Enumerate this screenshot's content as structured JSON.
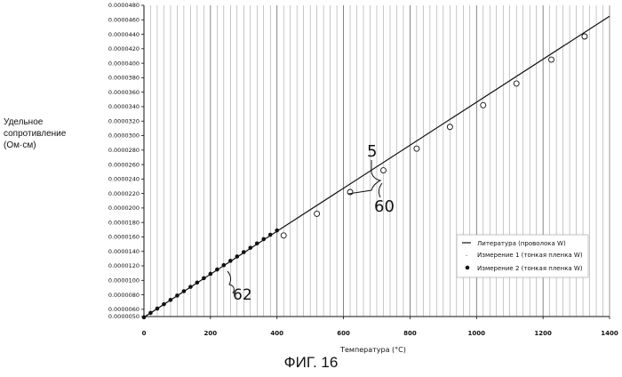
{
  "chart_data": {
    "type": "line",
    "xlabel": "Температура (°C)",
    "ylabel_lines": [
      "Удельное",
      "сопротивление",
      "(Ом·см)"
    ],
    "xlim": [
      0,
      1400
    ],
    "ylim": [
      5e-06,
      4.8e-05
    ],
    "x_ticks": [
      "0",
      "200",
      "400",
      "600",
      "800",
      "1000",
      "1200",
      "1400"
    ],
    "y_ticks": [
      "0.0000050",
      "0.0000060",
      "0.0000080",
      "0.0000100",
      "0.0000120",
      "0.0000140",
      "0.0000160",
      "0.0000180",
      "0.0000200",
      "0.0000220",
      "0.0000240",
      "0.0000260",
      "0.0000280",
      "0.0000300",
      "0.0000320",
      "0.0000340",
      "0.0000360",
      "0.0000380",
      "0.0000400",
      "0.0000420",
      "0.0000440",
      "0.0000460",
      "0.0000480"
    ],
    "grid": "vertical",
    "legend_position": "right",
    "series": [
      {
        "name": "Литература (проволока W)",
        "style": "line",
        "x": [
          0,
          1400
        ],
        "y": [
          4.9e-06,
          4.65e-05
        ]
      },
      {
        "name": "Измерение 1 (тонкая пленка W)",
        "style": "open-circle",
        "x": [
          420,
          520,
          620,
          720,
          820,
          920,
          1020,
          1120,
          1225,
          1325
        ],
        "y": [
          1.62e-05,
          1.92e-05,
          2.22e-05,
          2.52e-05,
          2.82e-05,
          3.12e-05,
          3.42e-05,
          3.72e-05,
          4.05e-05,
          4.37e-05
        ]
      },
      {
        "name": "Измерение 2 (тонкая пленка W)",
        "style": "filled-circle",
        "x": [
          0,
          20,
          40,
          60,
          80,
          100,
          120,
          140,
          160,
          180,
          200,
          220,
          240,
          260,
          280,
          300,
          320,
          340,
          360,
          380,
          400
        ],
        "y": [
          4.9e-06,
          5.5e-06,
          6.1e-06,
          6.7e-06,
          7.3e-06,
          7.9e-06,
          8.5e-06,
          9.1e-06,
          9.7e-06,
          1.03e-05,
          1.09e-05,
          1.15e-05,
          1.21e-05,
          1.27e-05,
          1.33e-05,
          1.39e-05,
          1.45e-05,
          1.51e-05,
          1.57e-05,
          1.63e-05,
          1.69e-05
        ]
      }
    ],
    "annotations": [
      "5",
      "60",
      "62"
    ]
  },
  "caption": "ФИГ. 16"
}
